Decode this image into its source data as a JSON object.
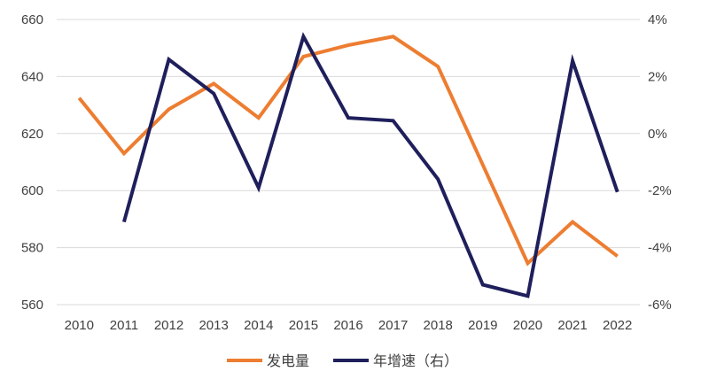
{
  "chart_data": {
    "type": "line",
    "title": "",
    "categories": [
      "2010",
      "2011",
      "2012",
      "2013",
      "2014",
      "2015",
      "2016",
      "2017",
      "2018",
      "2019",
      "2020",
      "2021",
      "2022"
    ],
    "series": [
      {
        "name": "发电量",
        "axis": "left",
        "color": "#ED7D31",
        "values": [
          632.5,
          613,
          628.5,
          637.5,
          625.5,
          647,
          651,
          654,
          643.5,
          609,
          574.5,
          589,
          577
        ]
      },
      {
        "name": "年增速（右）",
        "axis": "right",
        "color": "#1F1F5C",
        "values": [
          null,
          -3.1,
          2.6,
          1.4,
          -1.9,
          3.4,
          0.55,
          0.45,
          -1.6,
          -5.3,
          -5.7,
          2.55,
          -2.05
        ]
      }
    ],
    "y_left": {
      "min": 560,
      "max": 660,
      "ticks": [
        "560",
        "580",
        "600",
        "620",
        "640",
        "660"
      ]
    },
    "y_right": {
      "min": -6,
      "max": 4,
      "ticks": [
        "-6%",
        "-4%",
        "-2%",
        "0%",
        "2%",
        "4%"
      ]
    },
    "grid": true,
    "legend_position": "bottom"
  }
}
